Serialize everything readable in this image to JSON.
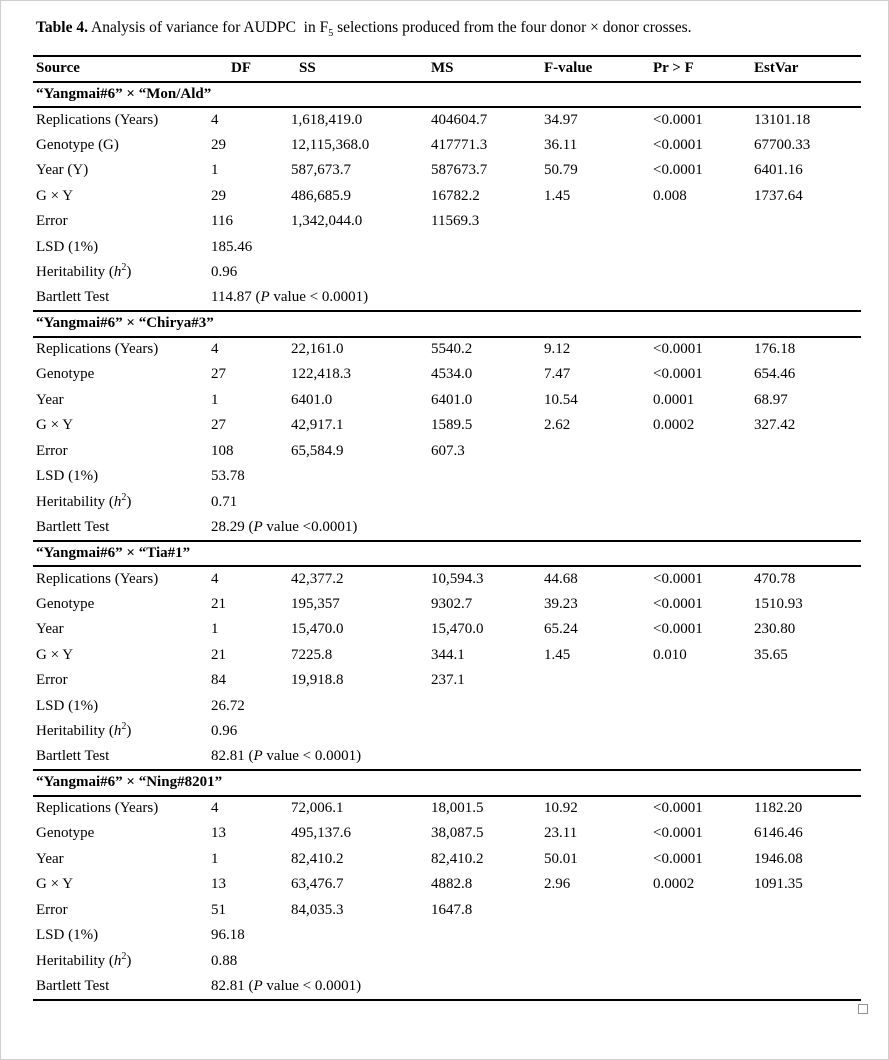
{
  "title": {
    "label": "Table 4.",
    "pre_sub": " Analysis of variance for AUDPC  in F",
    "sub": "5",
    "post_sub": " selections produced from the four donor × donor crosses."
  },
  "table": {
    "columns": [
      "Source",
      "DF",
      "SS",
      "MS",
      "F-value",
      "Pr > F",
      "EstVar"
    ],
    "labels": {
      "lsd": "LSD (1%)",
      "heritability_pre": "Heritability (",
      "heritability_h": "h",
      "heritability_sup": "2",
      "heritability_post": ")",
      "bartlett": "Bartlett Test",
      "bartlett_open": " (",
      "bartlett_p": "P"
    },
    "sections": [
      {
        "header": "“Yangmai#6” × “Mon/Ald”",
        "rows": [
          {
            "source": "Replications (Years)",
            "df": "4",
            "ss": "1,618,419.0",
            "ms": "404604.7",
            "f": "34.97",
            "pr": "<0.0001",
            "estvar": "13101.18"
          },
          {
            "source": "Genotype (G)",
            "df": "29",
            "ss": "12,115,368.0",
            "ms": "417771.3",
            "f": "36.11",
            "pr": "<0.0001",
            "estvar": "67700.33"
          },
          {
            "source": "Year (Y)",
            "df": "1",
            "ss": "587,673.7",
            "ms": "587673.7",
            "f": "50.79",
            "pr": "<0.0001",
            "estvar": "6401.16"
          },
          {
            "source": "G × Y",
            "df": "29",
            "ss": "486,685.9",
            "ms": "16782.2",
            "f": "1.45",
            "pr": "0.008",
            "estvar": "1737.64"
          },
          {
            "source": "Error",
            "df": "116",
            "ss": "1,342,044.0",
            "ms": "11569.3",
            "f": "",
            "pr": "",
            "estvar": ""
          }
        ],
        "lsd": "185.46",
        "heritability": "0.96",
        "bartlett_stat": "114.87",
        "bartlett_suffix": " value < 0.0001)"
      },
      {
        "header": "“Yangmai#6” × “Chirya#3”",
        "rows": [
          {
            "source": "Replications (Years)",
            "df": "4",
            "ss": "22,161.0",
            "ms": "5540.2",
            "f": "9.12",
            "pr": "<0.0001",
            "estvar": "176.18"
          },
          {
            "source": "Genotype",
            "df": "27",
            "ss": "122,418.3",
            "ms": "4534.0",
            "f": "7.47",
            "pr": "<0.0001",
            "estvar": "654.46"
          },
          {
            "source": "Year",
            "df": "1",
            "ss": "6401.0",
            "ms": "6401.0",
            "f": "10.54",
            "pr": "0.0001",
            "estvar": "68.97"
          },
          {
            "source": "G × Y",
            "df": "27",
            "ss": "42,917.1",
            "ms": "1589.5",
            "f": "2.62",
            "pr": "0.0002",
            "estvar": "327.42"
          },
          {
            "source": "Error",
            "df": "108",
            "ss": "65,584.9",
            "ms": "607.3",
            "f": "",
            "pr": "",
            "estvar": ""
          }
        ],
        "lsd": "53.78",
        "heritability": "0.71",
        "bartlett_stat": "28.29",
        "bartlett_suffix": " value <0.0001)"
      },
      {
        "header": "“Yangmai#6” × “Tia#1”",
        "rows": [
          {
            "source": "Replications (Years)",
            "df": "4",
            "ss": "42,377.2",
            "ms": "10,594.3",
            "f": "44.68",
            "pr": "<0.0001",
            "estvar": "470.78"
          },
          {
            "source": "Genotype",
            "df": "21",
            "ss": "195,357",
            "ms": "9302.7",
            "f": "39.23",
            "pr": "<0.0001",
            "estvar": "1510.93"
          },
          {
            "source": "Year",
            "df": "1",
            "ss": "15,470.0",
            "ms": "15,470.0",
            "f": "65.24",
            "pr": "<0.0001",
            "estvar": "230.80"
          },
          {
            "source": "G × Y",
            "df": "21",
            "ss": "7225.8",
            "ms": "344.1",
            "f": "1.45",
            "pr": "0.010",
            "estvar": "35.65"
          },
          {
            "source": "Error",
            "df": "84",
            "ss": "19,918.8",
            "ms": "237.1",
            "f": "",
            "pr": "",
            "estvar": ""
          }
        ],
        "lsd": "26.72",
        "heritability": "0.96",
        "bartlett_stat": "82.81",
        "bartlett_suffix": " value < 0.0001)"
      },
      {
        "header": "“Yangmai#6” × “Ning#8201”",
        "rows": [
          {
            "source": "Replications (Years)",
            "df": "4",
            "ss": "72,006.1",
            "ms": "18,001.5",
            "f": "10.92",
            "pr": "<0.0001",
            "estvar": "1182.20"
          },
          {
            "source": "Genotype",
            "df": "13",
            "ss": "495,137.6",
            "ms": "38,087.5",
            "f": "23.11",
            "pr": "<0.0001",
            "estvar": "6146.46"
          },
          {
            "source": "Year",
            "df": "1",
            "ss": "82,410.2",
            "ms": "82,410.2",
            "f": "50.01",
            "pr": "<0.0001",
            "estvar": "1946.08"
          },
          {
            "source": "G × Y",
            "df": "13",
            "ss": "63,476.7",
            "ms": "4882.8",
            "f": "2.96",
            "pr": "0.0002",
            "estvar": "1091.35"
          },
          {
            "source": "Error",
            "df": "51",
            "ss": "84,035.3",
            "ms": "1647.8",
            "f": "",
            "pr": "",
            "estvar": ""
          }
        ],
        "lsd": "96.18",
        "heritability": "0.88",
        "bartlett_stat": "82.81",
        "bartlett_suffix": " value < 0.0001)"
      }
    ]
  }
}
